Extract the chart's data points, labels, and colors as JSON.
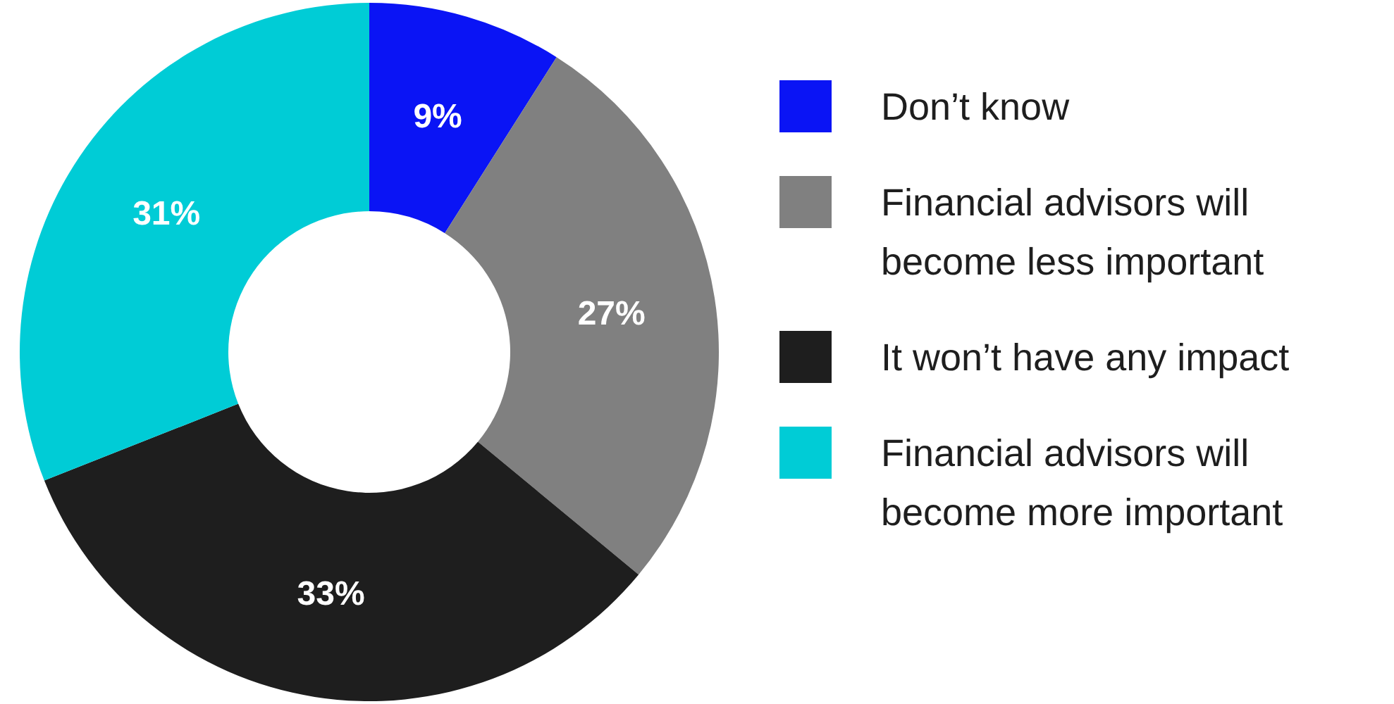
{
  "chart_data": {
    "type": "donut",
    "categories": [
      "Don’t know",
      "Financial advisors will become less important",
      "It won’t have any impact",
      "Financial advisors will become more important"
    ],
    "values": [
      9,
      27,
      33,
      31
    ],
    "colors": [
      "#0a14f5",
      "#808080",
      "#1e1e1e",
      "#00ccd6"
    ],
    "value_labels": [
      "9%",
      "27%",
      "33%",
      "31%"
    ],
    "legend": "right"
  }
}
